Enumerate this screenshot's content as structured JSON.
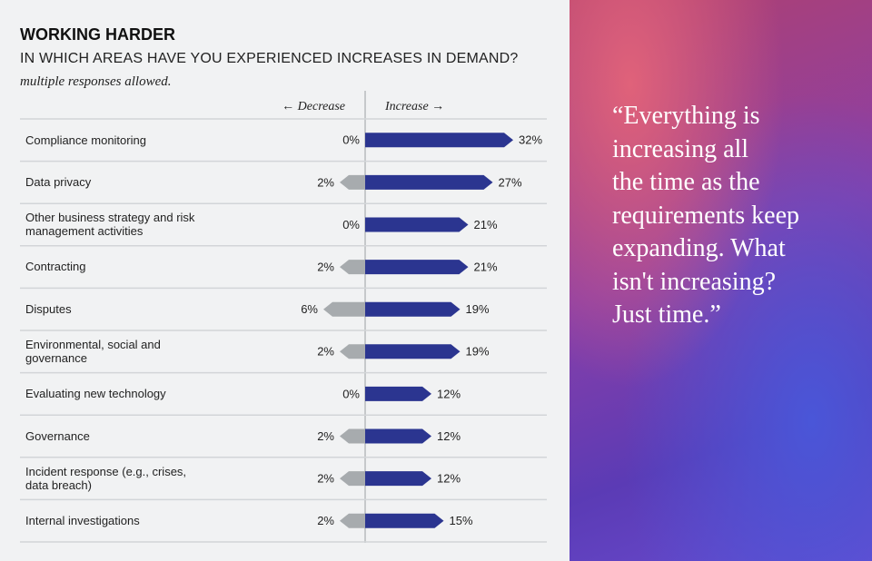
{
  "chart_data": {
    "type": "diverging-bar",
    "title": "WORKING HARDER",
    "subtitle": "IN WHICH AREAS HAVE YOU EXPERIENCED INCREASES IN DEMAND?",
    "note": "multiple responses allowed.",
    "categories": [
      "Compliance monitoring",
      "Data privacy",
      "Other business strategy and risk management activities",
      "Contracting",
      "Disputes",
      "Environmental, social and governance",
      "Evaluating new technology",
      "Governance",
      "Incident response (e.g., crises, data breach)",
      "Internal investigations"
    ],
    "series": [
      {
        "name": "← Decrease",
        "color": "#a7abae",
        "direction": "left",
        "values": [
          0,
          2,
          0,
          2,
          6,
          2,
          0,
          2,
          2,
          2
        ],
        "value_labels": [
          "0%",
          "2%",
          "0%",
          "2%",
          "6%",
          "2%",
          "0%",
          "2%",
          "2%",
          "2%"
        ]
      },
      {
        "name": "Increase →",
        "color": "#2b3590",
        "direction": "right",
        "values": [
          32,
          27,
          21,
          21,
          19,
          19,
          12,
          12,
          12,
          15
        ],
        "value_labels": [
          "32%",
          "27%",
          "21%",
          "21%",
          "19%",
          "19%",
          "12%",
          "12%",
          "12%",
          "15%"
        ]
      }
    ]
  },
  "panel": {
    "quote": [
      "“Everything is",
      "increasing all",
      "the time as the",
      "requirements keep",
      "expanding. What",
      "isn't increasing?",
      "Just time.”"
    ]
  }
}
